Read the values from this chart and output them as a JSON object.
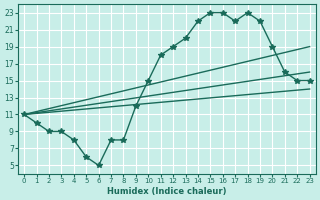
{
  "bg_color": "#c8eee8",
  "grid_color": "#ffffff",
  "line_color": "#1a6b5a",
  "xlabel": "Humidex (Indice chaleur)",
  "xlim": [
    -0.5,
    23.5
  ],
  "ylim": [
    4,
    24
  ],
  "xticks": [
    0,
    1,
    2,
    3,
    4,
    5,
    6,
    7,
    8,
    9,
    10,
    11,
    12,
    13,
    14,
    15,
    16,
    17,
    18,
    19,
    20,
    21,
    22,
    23
  ],
  "yticks": [
    5,
    7,
    9,
    11,
    13,
    15,
    17,
    19,
    21,
    23
  ],
  "main_x": [
    0,
    1,
    2,
    3,
    4,
    5,
    6,
    7,
    8,
    9,
    10,
    11,
    12,
    13,
    14,
    15,
    16,
    17,
    18,
    19,
    20,
    21,
    22,
    23
  ],
  "main_y": [
    11,
    10,
    9,
    9,
    8,
    6,
    5,
    8,
    8,
    12,
    15,
    18,
    19,
    20,
    22,
    23,
    23,
    22,
    23,
    22,
    19,
    16,
    15,
    15
  ],
  "line1_x": [
    0,
    23
  ],
  "line1_y": [
    11,
    19
  ],
  "line2_x": [
    0,
    23
  ],
  "line2_y": [
    11,
    14
  ],
  "line3_x": [
    0,
    23
  ],
  "line3_y": [
    11,
    16
  ]
}
